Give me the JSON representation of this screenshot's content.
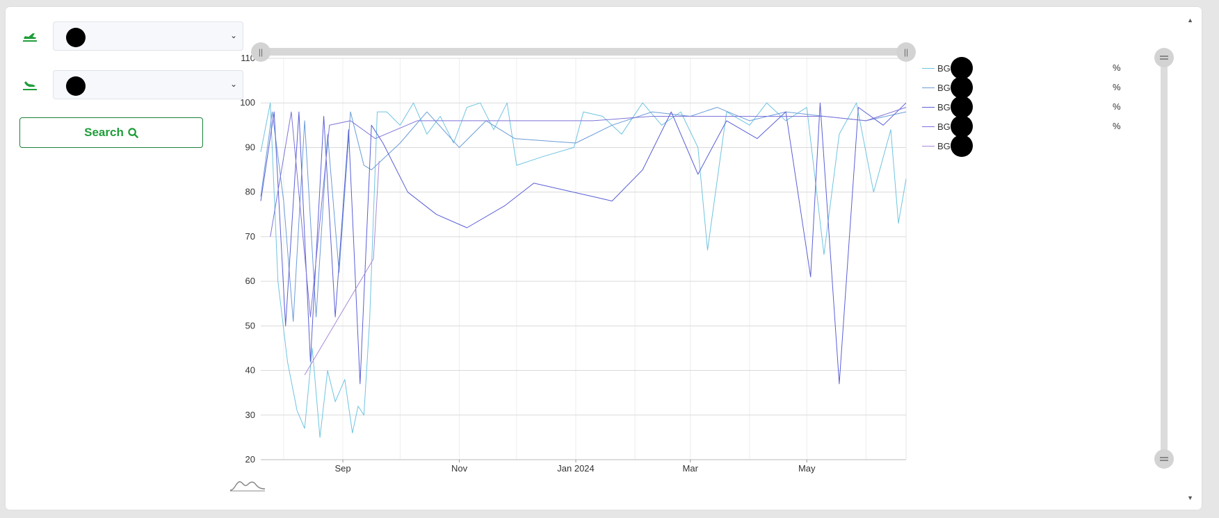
{
  "form": {
    "departure_icon": "airplane-departure-icon",
    "arrival_icon": "airplane-arrival-icon",
    "search_label": "Search",
    "search_icon": "search-icon",
    "accent_color": "#1f9d3a"
  },
  "chart_data": {
    "type": "line",
    "title": "",
    "xlabel": "",
    "ylabel": "",
    "unit": "%",
    "ylim": [
      20,
      110
    ],
    "xlim": [
      "2023-07-20",
      "2024-06-22"
    ],
    "yticks": [
      20,
      30,
      40,
      50,
      60,
      70,
      80,
      90,
      100,
      110
    ],
    "xticks": [
      {
        "date": "2023-09-01",
        "label": "Sep"
      },
      {
        "date": "2023-11-01",
        "label": "Nov"
      },
      {
        "date": "2024-01-01",
        "label": "Jan 2024"
      },
      {
        "date": "2024-03-01",
        "label": "Mar"
      },
      {
        "date": "2024-05-01",
        "label": "May"
      }
    ],
    "grid": true,
    "legend_position": "right",
    "series": [
      {
        "name": "BG",
        "unit": "%",
        "color": "#6fc4e0",
        "points": [
          [
            "2023-07-20",
            89
          ],
          [
            "2023-07-25",
            100
          ],
          [
            "2023-07-29",
            60
          ],
          [
            "2023-08-03",
            42
          ],
          [
            "2023-08-08",
            31
          ],
          [
            "2023-08-12",
            27
          ],
          [
            "2023-08-16",
            45
          ],
          [
            "2023-08-20",
            25
          ],
          [
            "2023-08-24",
            40
          ],
          [
            "2023-08-28",
            33
          ],
          [
            "2023-09-02",
            38
          ],
          [
            "2023-09-06",
            26
          ],
          [
            "2023-09-09",
            32
          ],
          [
            "2023-09-12",
            30
          ],
          [
            "2023-09-15",
            51
          ],
          [
            "2023-09-19",
            98
          ],
          [
            "2023-09-24",
            98
          ],
          [
            "2023-10-01",
            95
          ],
          [
            "2023-10-08",
            100
          ],
          [
            "2023-10-15",
            93
          ],
          [
            "2023-10-22",
            97
          ],
          [
            "2023-10-29",
            91
          ],
          [
            "2023-11-05",
            99
          ],
          [
            "2023-11-12",
            100
          ],
          [
            "2023-11-19",
            94
          ],
          [
            "2023-11-26",
            100
          ],
          [
            "2023-12-01",
            86
          ],
          [
            "2023-12-15",
            88
          ],
          [
            "2023-12-31",
            90
          ],
          [
            "2024-01-05",
            98
          ],
          [
            "2024-01-15",
            97
          ],
          [
            "2024-01-25",
            93
          ],
          [
            "2024-02-05",
            100
          ],
          [
            "2024-02-15",
            95
          ],
          [
            "2024-02-25",
            98
          ],
          [
            "2024-03-05",
            90
          ],
          [
            "2024-03-10",
            67
          ],
          [
            "2024-03-20",
            98
          ],
          [
            "2024-04-01",
            95
          ],
          [
            "2024-04-10",
            100
          ],
          [
            "2024-04-20",
            96
          ],
          [
            "2024-05-01",
            99
          ],
          [
            "2024-05-10",
            66
          ],
          [
            "2024-05-18",
            93
          ],
          [
            "2024-05-27",
            100
          ],
          [
            "2024-06-05",
            80
          ],
          [
            "2024-06-14",
            94
          ],
          [
            "2024-06-18",
            73
          ],
          [
            "2024-06-22",
            83
          ]
        ]
      },
      {
        "name": "BG",
        "unit": "%",
        "color": "#6b9bd8",
        "points": [
          [
            "2023-07-20",
            79
          ],
          [
            "2023-07-26",
            98
          ],
          [
            "2023-08-01",
            78
          ],
          [
            "2023-08-06",
            51
          ],
          [
            "2023-08-12",
            96
          ],
          [
            "2023-08-18",
            52
          ],
          [
            "2023-08-24",
            93
          ],
          [
            "2023-08-30",
            62
          ],
          [
            "2023-09-05",
            98
          ],
          [
            "2023-09-12",
            86
          ],
          [
            "2023-09-16",
            85
          ],
          [
            "2023-10-01",
            91
          ],
          [
            "2023-10-15",
            98
          ],
          [
            "2023-11-01",
            90
          ],
          [
            "2023-11-15",
            96
          ],
          [
            "2023-11-30",
            92
          ],
          [
            "2024-01-01",
            91
          ],
          [
            "2024-01-20",
            95
          ],
          [
            "2024-02-10",
            98
          ],
          [
            "2024-03-01",
            97
          ],
          [
            "2024-03-15",
            99
          ],
          [
            "2024-04-01",
            96
          ],
          [
            "2024-04-20",
            98
          ],
          [
            "2024-05-10",
            97
          ],
          [
            "2024-06-01",
            96
          ],
          [
            "2024-06-22",
            98
          ]
        ]
      },
      {
        "name": "BG",
        "unit": "%",
        "color": "#5a5fd6",
        "points": [
          [
            "2023-07-20",
            78
          ],
          [
            "2023-07-27",
            98
          ],
          [
            "2023-08-02",
            50
          ],
          [
            "2023-08-09",
            98
          ],
          [
            "2023-08-15",
            42
          ],
          [
            "2023-08-22",
            97
          ],
          [
            "2023-08-28",
            52
          ],
          [
            "2023-09-04",
            94
          ],
          [
            "2023-09-10",
            37
          ],
          [
            "2023-09-16",
            95
          ],
          [
            "2023-09-22",
            91
          ],
          [
            "2023-10-05",
            80
          ],
          [
            "2023-10-20",
            75
          ],
          [
            "2023-11-05",
            72
          ],
          [
            "2023-11-25",
            77
          ],
          [
            "2023-12-10",
            82
          ],
          [
            "2024-01-10",
            79
          ],
          [
            "2024-01-20",
            78
          ],
          [
            "2024-02-05",
            85
          ],
          [
            "2024-02-20",
            98
          ],
          [
            "2024-03-05",
            84
          ],
          [
            "2024-03-20",
            96
          ],
          [
            "2024-04-05",
            92
          ],
          [
            "2024-04-20",
            98
          ],
          [
            "2024-05-03",
            61
          ],
          [
            "2024-05-08",
            100
          ],
          [
            "2024-05-18",
            37
          ],
          [
            "2024-05-28",
            99
          ],
          [
            "2024-06-10",
            95
          ],
          [
            "2024-06-22",
            100
          ]
        ]
      },
      {
        "name": "BG",
        "unit": "%",
        "color": "#7d72d8",
        "points": [
          [
            "2023-07-25",
            70
          ],
          [
            "2023-08-05",
            98
          ],
          [
            "2023-08-15",
            52
          ],
          [
            "2023-08-25",
            95
          ],
          [
            "2023-09-05",
            96
          ],
          [
            "2023-09-18",
            92
          ],
          [
            "2023-10-10",
            96
          ],
          [
            "2023-11-10",
            96
          ],
          [
            "2023-12-10",
            96
          ],
          [
            "2024-01-10",
            96
          ],
          [
            "2024-02-10",
            97
          ],
          [
            "2024-03-10",
            97
          ],
          [
            "2024-04-10",
            97
          ],
          [
            "2024-05-10",
            97
          ],
          [
            "2024-06-01",
            96
          ],
          [
            "2024-06-22",
            99
          ]
        ]
      },
      {
        "name": "BG",
        "unit": "",
        "color": "#a78ad8",
        "points": [
          [
            "2023-08-12",
            39
          ],
          [
            "2023-09-17",
            65
          ],
          [
            "2023-09-20",
            87
          ]
        ]
      }
    ]
  }
}
